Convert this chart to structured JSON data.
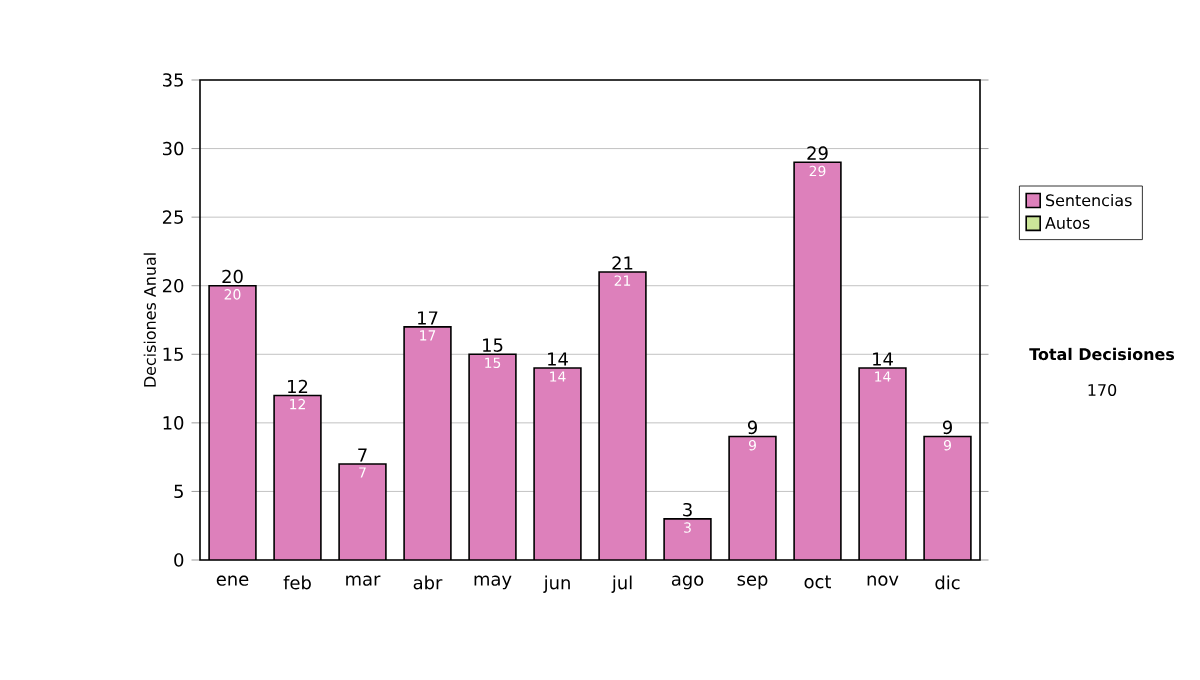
{
  "chart_data": {
    "type": "bar",
    "stacked": true,
    "ylabel": "Decisiones Anual",
    "categories": [
      "ene",
      "feb",
      "mar",
      "abr",
      "may",
      "jun",
      "jul",
      "ago",
      "sep",
      "oct",
      "nov",
      "dic"
    ],
    "series": [
      {
        "name": "Sentencias",
        "color": "#dd80bb",
        "values": [
          20,
          12,
          7,
          17,
          15,
          14,
          21,
          3,
          9,
          29,
          14,
          9
        ],
        "value_labels": [
          "20",
          "12",
          "7",
          "17",
          "15",
          "14",
          "21",
          "3",
          "9",
          "29",
          "14",
          "9"
        ]
      },
      {
        "name": "Autos",
        "color": "#cce699",
        "values": [
          0,
          0,
          0,
          0,
          0,
          0,
          0,
          0,
          0,
          0,
          0,
          0
        ]
      }
    ],
    "totals": [
      "20",
      "12",
      "7",
      "17",
      "15",
      "14",
      "21",
      "3",
      "9",
      "29",
      "14",
      "9"
    ],
    "ylim": [
      0,
      35
    ],
    "yticks": [
      0,
      5,
      10,
      15,
      20,
      25,
      30,
      35
    ],
    "grid": "y",
    "legend": "right",
    "annotations": [
      "Total Decisiones",
      "170"
    ]
  }
}
